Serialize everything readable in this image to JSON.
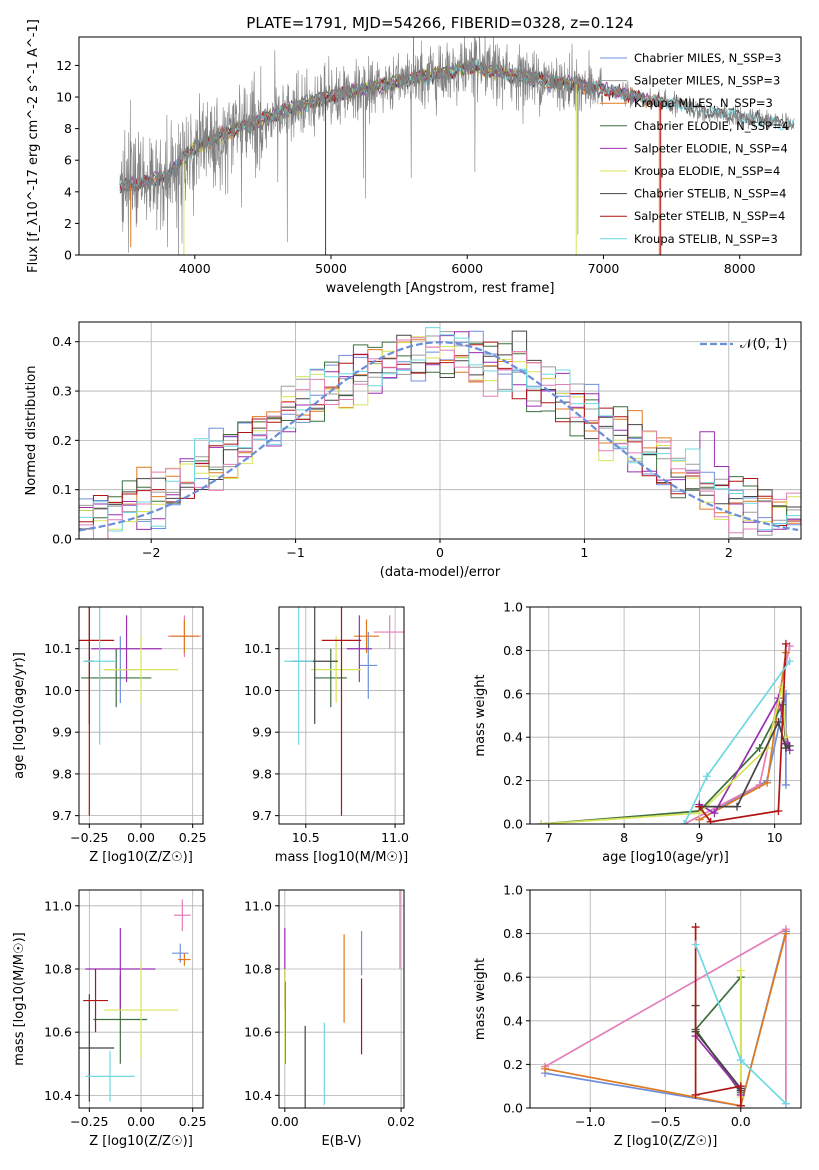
{
  "figure_title": "PLATE=1791, MJD=54266, FIBERID=0328, z=0.124",
  "colors": {
    "Chabrier MILES": "#6f8fdc",
    "Salpeter MILES": "#9c9c9c",
    "Kroupa MILES": "#e07a20",
    "Chabrier ELODIE": "#3f6e3f",
    "Salpeter ELODIE": "#9a2fb0",
    "Kroupa ELODIE": "#d8e45a",
    "Chabrier STELIB": "#444444",
    "Salpeter STELIB": "#b01414",
    "Kroupa STELIB": "#6fd8e2",
    "pink": "#e47eb8",
    "data": "#808080",
    "gauss": "#6a8fd8"
  },
  "chart_data": [
    {
      "id": "spectrum",
      "type": "line",
      "xlabel": "wavelength [Angstrom, rest frame]",
      "ylabel": "Flux [f_λ10^-17 erg cm^-2 s^-1 A^-1]",
      "xlim": [
        3150,
        8450
      ],
      "ylim": [
        0,
        13.8
      ],
      "xticks": [
        "4000",
        "5000",
        "6000",
        "7000",
        "8000"
      ],
      "yticks": [
        "0",
        "2",
        "4",
        "6",
        "8",
        "10",
        "12"
      ],
      "legend": [
        "Chabrier MILES, N_SSP=3",
        "Salpeter MILES, N_SSP=3",
        "Kroupa MILES, N_SSP=3",
        "Chabrier ELODIE, N_SSP=4",
        "Salpeter ELODIE, N_SSP=4",
        "Kroupa ELODIE, N_SSP=4",
        "Chabrier STELIB, N_SSP=4",
        "Salpeter STELIB, N_SSP=4",
        "Kroupa STELIB, N_SSP=3"
      ],
      "continuum_x": [
        3450,
        3600,
        3800,
        3900,
        4000,
        4200,
        4500,
        4800,
        5000,
        5300,
        5600,
        5900,
        6000,
        6200,
        6400,
        6600,
        6800,
        7000,
        7200,
        7400,
        7600,
        7800,
        8000,
        8200,
        8400
      ],
      "continuum_y": [
        4.3,
        4.5,
        5.0,
        6.0,
        6.8,
        7.6,
        8.6,
        9.5,
        10.1,
        10.6,
        11.2,
        11.6,
        11.9,
        11.6,
        11.3,
        11.0,
        10.8,
        10.5,
        10.1,
        9.7,
        9.4,
        9.0,
        8.8,
        8.5,
        8.2
      ]
    },
    {
      "id": "residual-hist",
      "type": "histogram",
      "xlabel": "(data-model)/error",
      "ylabel": "Normed distribution",
      "xlim": [
        -2.5,
        2.5
      ],
      "ylim": [
        0,
        0.44
      ],
      "xticks": [
        "−2",
        "−1",
        "0",
        "1",
        "2"
      ],
      "yticks": [
        "0.0",
        "0.1",
        "0.2",
        "0.3",
        "0.4"
      ],
      "legend": [
        "𝒩(0, 1)"
      ],
      "bin_width": 0.1
    },
    {
      "id": "age-vs-Z",
      "type": "errorbar",
      "xlabel": "Z [log10(Z/Z☉)]",
      "ylabel": "age [log10(age/yr)]",
      "xlim": [
        -0.3,
        0.3
      ],
      "ylim": [
        9.68,
        10.2
      ],
      "xticks": [
        "−0.25",
        "0.00",
        "0.25"
      ],
      "yticks": [
        "9.7",
        "9.8",
        "9.9",
        "10.0",
        "10.1"
      ],
      "points": [
        {
          "c": "Chabrier MILES",
          "x": -0.1,
          "y": 10.05,
          "xerr": 0.08,
          "yerr": 0.08
        },
        {
          "c": "pink",
          "x": 0.21,
          "y": 10.13,
          "xerr": 0.08,
          "yerr": 0.05
        },
        {
          "c": "Kroupa MILES",
          "x": 0.21,
          "y": 10.13,
          "xerr": 0.07,
          "yerr": 0.04
        },
        {
          "c": "Chabrier ELODIE",
          "x": -0.12,
          "y": 10.03,
          "xerr": 0.17,
          "yerr": 0.07
        },
        {
          "c": "Salpeter ELODIE",
          "x": -0.07,
          "y": 10.1,
          "xerr": 0.17,
          "yerr": 0.08
        },
        {
          "c": "Kroupa ELODIE",
          "x": 0.0,
          "y": 10.05,
          "xerr": 0.18,
          "yerr": 0.08
        },
        {
          "c": "Chabrier STELIB",
          "x": -0.25,
          "y": 10.07,
          "xerr": 0.02,
          "yerr": 0.15
        },
        {
          "c": "Salpeter STELIB",
          "x": -0.25,
          "y": 10.12,
          "xerr": 0.12,
          "yerr": 0.42
        },
        {
          "c": "Kroupa STELIB",
          "x": -0.2,
          "y": 10.07,
          "xerr": 0.08,
          "yerr": 0.2
        }
      ]
    },
    {
      "id": "age-vs-mass",
      "type": "errorbar",
      "xlabel": "mass [log10(M/M☉)]",
      "ylabel": "",
      "xlim": [
        10.35,
        11.05
      ],
      "ylim": [
        9.68,
        10.2
      ],
      "xticks": [
        "10.5",
        "11.0"
      ],
      "yticks": [
        "9.7",
        "9.8",
        "9.9",
        "10.0",
        "10.1"
      ],
      "points": [
        {
          "c": "Chabrier MILES",
          "x": 10.85,
          "y": 10.06,
          "xerr": 0.05,
          "yerr": 0.08
        },
        {
          "c": "pink",
          "x": 10.97,
          "y": 10.14,
          "xerr": 0.09,
          "yerr": 0.04
        },
        {
          "c": "Kroupa MILES",
          "x": 10.84,
          "y": 10.13,
          "xerr": 0.07,
          "yerr": 0.04
        },
        {
          "c": "Chabrier ELODIE",
          "x": 10.64,
          "y": 10.03,
          "xerr": 0.09,
          "yerr": 0.07
        },
        {
          "c": "Salpeter ELODIE",
          "x": 10.8,
          "y": 10.1,
          "xerr": 0.07,
          "yerr": 0.08
        },
        {
          "c": "Kroupa ELODIE",
          "x": 10.67,
          "y": 10.05,
          "xerr": 0.14,
          "yerr": 0.08
        },
        {
          "c": "Chabrier STELIB",
          "x": 10.55,
          "y": 10.07,
          "xerr": 0.13,
          "yerr": 0.15
        },
        {
          "c": "Salpeter STELIB",
          "x": 10.7,
          "y": 10.12,
          "xerr": 0.11,
          "yerr": 0.42
        },
        {
          "c": "Kroupa STELIB",
          "x": 10.46,
          "y": 10.07,
          "xerr": 0.08,
          "yerr": 0.2
        }
      ]
    },
    {
      "id": "weight-vs-age",
      "type": "line",
      "xlabel": "age [log10(age/yr)]",
      "ylabel": "mass weight",
      "xlim": [
        6.75,
        10.35
      ],
      "ylim": [
        0,
        1.0
      ],
      "xticks": [
        "7",
        "8",
        "9",
        "10"
      ],
      "yticks": [
        "0.0",
        "0.2",
        "0.4",
        "0.6",
        "0.8",
        "1.0"
      ],
      "series": [
        {
          "c": "Chabrier MILES",
          "x": [
            9.0,
            9.9,
            10.15,
            10.15
          ],
          "y": [
            0.02,
            0.2,
            0.6,
            0.18
          ]
        },
        {
          "c": "pink",
          "x": [
            8.8,
            9.8,
            10.2
          ],
          "y": [
            0.0,
            0.18,
            0.82
          ]
        },
        {
          "c": "Kroupa MILES",
          "x": [
            9.0,
            9.9,
            10.15
          ],
          "y": [
            0.02,
            0.19,
            0.79
          ]
        },
        {
          "c": "Chabrier ELODIE",
          "x": [
            6.9,
            9.0,
            9.8,
            10.1,
            10.15
          ],
          "y": [
            0.0,
            0.06,
            0.35,
            0.55,
            0.37
          ]
        },
        {
          "c": "Salpeter ELODIE",
          "x": [
            9.0,
            9.2,
            10.05,
            10.2,
            10.15
          ],
          "y": [
            0.09,
            0.05,
            0.58,
            0.34,
            0.37
          ]
        },
        {
          "c": "Kroupa ELODIE",
          "x": [
            6.9,
            9.0,
            9.9,
            10.1,
            10.15
          ],
          "y": [
            0.0,
            0.05,
            0.35,
            0.63,
            0.4
          ]
        },
        {
          "c": "Chabrier STELIB",
          "x": [
            9.0,
            9.5,
            10.05,
            10.15,
            10.2
          ],
          "y": [
            0.08,
            0.08,
            0.47,
            0.35,
            0.36
          ]
        },
        {
          "c": "Salpeter STELIB",
          "x": [
            9.0,
            9.15,
            10.05,
            10.15
          ],
          "y": [
            0.08,
            0.01,
            0.06,
            0.83
          ]
        },
        {
          "c": "Kroupa STELIB",
          "x": [
            8.8,
            9.1,
            10.2
          ],
          "y": [
            0.0,
            0.22,
            0.75
          ]
        }
      ]
    },
    {
      "id": "mass-vs-Z",
      "type": "errorbar",
      "xlabel": "Z [log10(Z/Z☉)]",
      "ylabel": "mass [log10(M/M☉)]",
      "xlim": [
        -0.3,
        0.3
      ],
      "ylim": [
        10.36,
        11.05
      ],
      "xticks": [
        "−0.25",
        "0.00",
        "0.25"
      ],
      "yticks": [
        "10.4",
        "10.6",
        "10.8",
        "11.0"
      ],
      "points": [
        {
          "c": "Chabrier MILES",
          "x": 0.19,
          "y": 10.85,
          "xerr": 0.04,
          "yerr": 0.03
        },
        {
          "c": "pink",
          "x": 0.2,
          "y": 10.97,
          "xerr": 0.04,
          "yerr": 0.05
        },
        {
          "c": "Kroupa MILES",
          "x": 0.21,
          "y": 10.83,
          "xerr": 0.03,
          "yerr": 0.02
        },
        {
          "c": "Chabrier ELODIE",
          "x": -0.1,
          "y": 10.64,
          "xerr": 0.13,
          "yerr": 0.14
        },
        {
          "c": "Salpeter ELODIE",
          "x": -0.1,
          "y": 10.8,
          "xerr": 0.17,
          "yerr": 0.13
        },
        {
          "c": "Kroupa ELODIE",
          "x": 0.0,
          "y": 10.67,
          "xerr": 0.18,
          "yerr": 0.15
        },
        {
          "c": "Chabrier STELIB",
          "x": -0.25,
          "y": 10.55,
          "xerr": 0.12,
          "yerr": 0.17
        },
        {
          "c": "Salpeter STELIB",
          "x": -0.22,
          "y": 10.7,
          "xerr": 0.06,
          "yerr": 0.1
        },
        {
          "c": "Kroupa STELIB",
          "x": -0.15,
          "y": 10.46,
          "xerr": 0.12,
          "yerr": 0.08
        }
      ]
    },
    {
      "id": "mass-vs-ebv",
      "type": "errorbar",
      "xlabel": "E(B-V)",
      "ylabel": "",
      "xlim": [
        -0.001,
        0.0205
      ],
      "ylim": [
        10.36,
        11.05
      ],
      "xticks": [
        "0.00",
        "0.02"
      ],
      "yticks": [
        "10.4",
        "10.6",
        "10.8",
        "11.0"
      ],
      "points": [
        {
          "c": "Chabrier MILES",
          "x": 0.0132,
          "y": 10.85,
          "xerr": 0,
          "yerr": 0.07
        },
        {
          "c": "pink",
          "x": 0.0198,
          "y": 10.97,
          "xerr": 0,
          "yerr": 0.17
        },
        {
          "c": "Kroupa MILES",
          "x": 0.0102,
          "y": 10.77,
          "xerr": 0,
          "yerr": 0.14
        },
        {
          "c": "Chabrier ELODIE",
          "x": 0.0001,
          "y": 10.63,
          "xerr": 0,
          "yerr": 0.13
        },
        {
          "c": "Salpeter ELODIE",
          "x": 0.0,
          "y": 10.8,
          "xerr": 0,
          "yerr": 0.13
        },
        {
          "c": "Kroupa ELODIE",
          "x": 0.0,
          "y": 10.65,
          "xerr": 0,
          "yerr": 0.15
        },
        {
          "c": "Chabrier STELIB",
          "x": 0.0035,
          "y": 10.48,
          "xerr": 0,
          "yerr": 0.14
        },
        {
          "c": "Salpeter STELIB",
          "x": 0.0132,
          "y": 10.65,
          "xerr": 0,
          "yerr": 0.12
        },
        {
          "c": "Kroupa STELIB",
          "x": 0.0068,
          "y": 10.5,
          "xerr": 0,
          "yerr": 0.13
        }
      ]
    },
    {
      "id": "weight-vs-Z",
      "type": "line",
      "xlabel": "Z [log10(Z/Z☉)]",
      "ylabel": "mass weight",
      "xlim": [
        -1.4,
        0.4
      ],
      "ylim": [
        0,
        1.0
      ],
      "xticks": [
        "−1.0",
        "−0.5",
        "0.0"
      ],
      "yticks": [
        "0.0",
        "0.2",
        "0.4",
        "0.6",
        "0.8",
        "1.0"
      ],
      "series": [
        {
          "c": "Chabrier MILES",
          "x": [
            -1.3,
            0.0,
            0.3
          ],
          "y": [
            0.16,
            0.01,
            0.81
          ]
        },
        {
          "c": "pink",
          "x": [
            -1.3,
            0.3,
            0.3
          ],
          "y": [
            0.19,
            0.82,
            0.02
          ]
        },
        {
          "c": "Kroupa MILES",
          "x": [
            -1.3,
            0.0,
            0.3
          ],
          "y": [
            0.18,
            0.01,
            0.8
          ]
        },
        {
          "c": "Chabrier ELODIE",
          "x": [
            -0.3,
            0.0,
            0.0,
            -0.3
          ],
          "y": [
            0.36,
            0.07,
            0.6,
            0.36
          ]
        },
        {
          "c": "Salpeter ELODIE",
          "x": [
            -0.3,
            0.0,
            0.0
          ],
          "y": [
            0.33,
            0.08,
            0.06
          ]
        },
        {
          "c": "Kroupa ELODIE",
          "x": [
            0.0,
            0.0
          ],
          "y": [
            0.05,
            0.63
          ]
        },
        {
          "c": "Chabrier STELIB",
          "x": [
            -0.3,
            -0.3,
            0.0,
            0.0
          ],
          "y": [
            0.47,
            0.35,
            0.09,
            0.08
          ]
        },
        {
          "c": "Salpeter STELIB",
          "x": [
            -0.3,
            -0.3,
            0.0,
            0.0
          ],
          "y": [
            0.83,
            0.06,
            0.1,
            0.01
          ]
        },
        {
          "c": "Kroupa STELIB",
          "x": [
            -0.3,
            0.0,
            0.3
          ],
          "y": [
            0.75,
            0.22,
            0.02
          ]
        }
      ]
    }
  ]
}
